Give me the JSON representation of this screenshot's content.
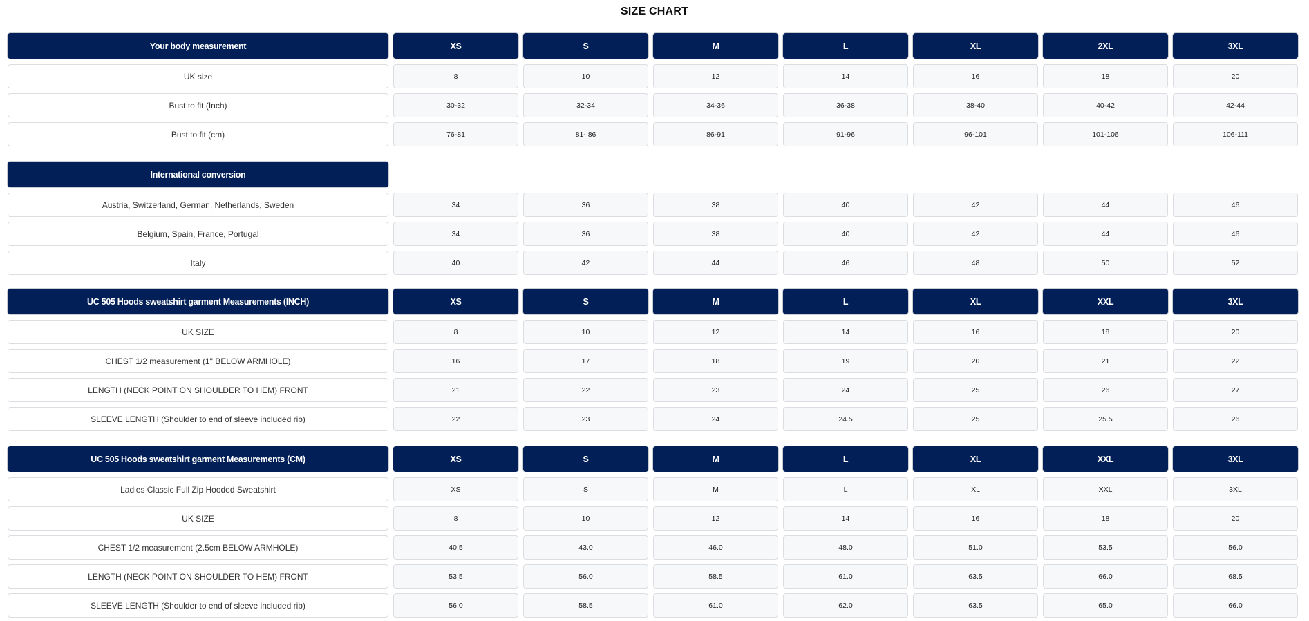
{
  "title": "SIZE CHART",
  "colors": {
    "header_bg": "#022057",
    "cell_bg": "#f7f8fa",
    "border": "#dcdde1"
  },
  "sections": [
    {
      "header_label": "Your body measurement",
      "columns": [
        "XS",
        "S",
        "M",
        "L",
        "XL",
        "2XL",
        "3XL"
      ],
      "rows": [
        {
          "label": "UK size",
          "values": [
            "8",
            "10",
            "12",
            "14",
            "16",
            "18",
            "20"
          ]
        },
        {
          "label": "Bust to fit (Inch)",
          "values": [
            "30-32",
            "32-34",
            "34-36",
            "36-38",
            "38-40",
            "40-42",
            "42-44"
          ]
        },
        {
          "label": "Bust to fit (cm)",
          "values": [
            "76-81",
            "81- 86",
            "86-91",
            "91-96",
            "96-101",
            "101-106",
            "106-111"
          ]
        }
      ]
    },
    {
      "header_label": "International conversion",
      "columns": [],
      "rows": [
        {
          "label": "Austria, Switzerland, German, Netherlands, Sweden",
          "values": [
            "34",
            "36",
            "38",
            "40",
            "42",
            "44",
            "46"
          ]
        },
        {
          "label": "Belgium, Spain, France, Portugal",
          "values": [
            "34",
            "36",
            "38",
            "40",
            "42",
            "44",
            "46"
          ]
        },
        {
          "label": "Italy",
          "values": [
            "40",
            "42",
            "44",
            "46",
            "48",
            "50",
            "52"
          ]
        }
      ]
    },
    {
      "header_label": "UC 505 Hoods sweatshirt garment Measurements (INCH)",
      "columns": [
        "XS",
        "S",
        "M",
        "L",
        "XL",
        "XXL",
        "3XL"
      ],
      "rows": [
        {
          "label": "UK SIZE",
          "values": [
            "8",
            "10",
            "12",
            "14",
            "16",
            "18",
            "20"
          ]
        },
        {
          "label": "CHEST 1/2 measurement (1\" BELOW ARMHOLE)",
          "values": [
            "16",
            "17",
            "18",
            "19",
            "20",
            "21",
            "22"
          ]
        },
        {
          "label": "LENGTH (NECK POINT ON SHOULDER TO HEM) FRONT",
          "values": [
            "21",
            "22",
            "23",
            "24",
            "25",
            "26",
            "27"
          ]
        },
        {
          "label": "SLEEVE LENGTH (Shoulder to end of sleeve included rib)",
          "values": [
            "22",
            "23",
            "24",
            "24.5",
            "25",
            "25.5",
            "26"
          ]
        }
      ]
    },
    {
      "header_label": "UC 505 Hoods sweatshirt garment Measurements (CM)",
      "columns": [
        "XS",
        "S",
        "M",
        "L",
        "XL",
        "XXL",
        "3XL"
      ],
      "rows": [
        {
          "label": "Ladies Classic Full Zip Hooded Sweatshirt",
          "values": [
            "XS",
            "S",
            "M",
            "L",
            "XL",
            "XXL",
            "3XL"
          ]
        },
        {
          "label": "UK SIZE",
          "values": [
            "8",
            "10",
            "12",
            "14",
            "16",
            "18",
            "20"
          ]
        },
        {
          "label": "CHEST 1/2 measurement (2.5cm BELOW ARMHOLE)",
          "values": [
            "40.5",
            "43.0",
            "46.0",
            "48.0",
            "51.0",
            "53.5",
            "56.0"
          ]
        },
        {
          "label": "LENGTH (NECK POINT ON SHOULDER TO HEM) FRONT",
          "values": [
            "53.5",
            "56.0",
            "58.5",
            "61.0",
            "63.5",
            "66.0",
            "68.5"
          ]
        },
        {
          "label": "SLEEVE LENGTH (Shoulder to end of sleeve included rib)",
          "values": [
            "56.0",
            "58.5",
            "61.0",
            "62.0",
            "63.5",
            "65.0",
            "66.0"
          ]
        }
      ]
    }
  ]
}
